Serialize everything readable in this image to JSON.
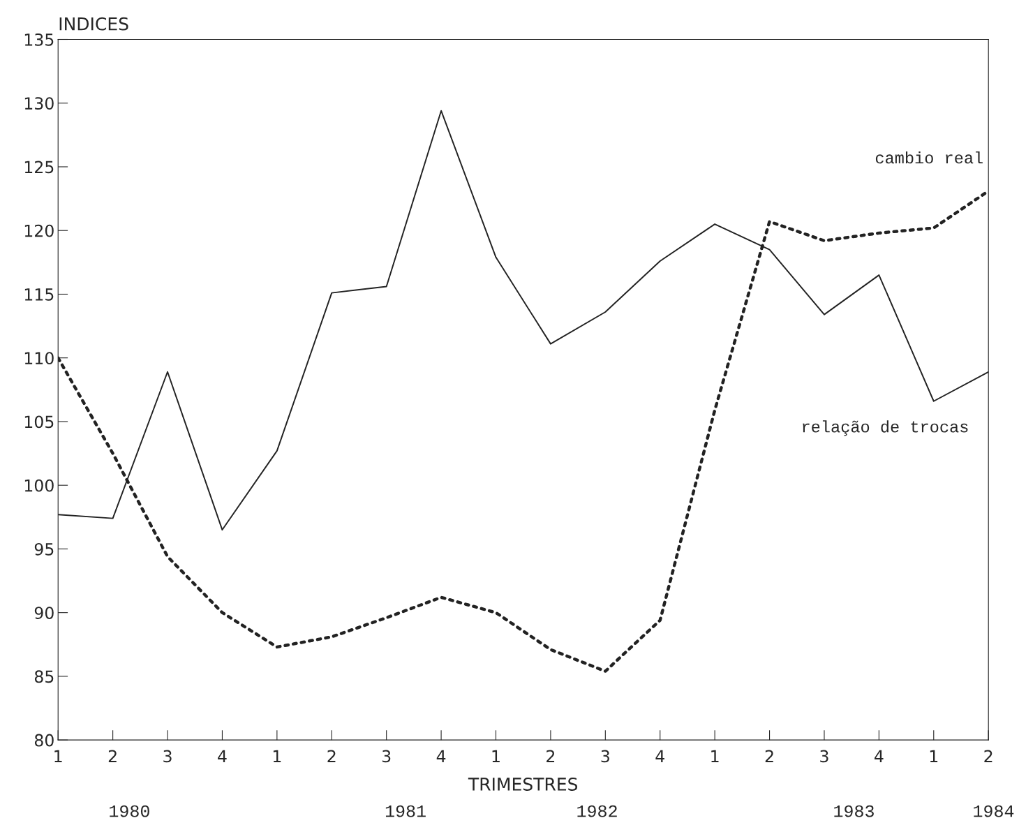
{
  "chart_data": {
    "type": "line",
    "ylabel": "INDICES",
    "xlabel": "TRIMESTRES",
    "categories": [
      "1",
      "2",
      "3",
      "4",
      "1",
      "2",
      "3",
      "4",
      "1",
      "2",
      "3",
      "4",
      "1",
      "2",
      "3",
      "4",
      "1",
      "2"
    ],
    "ylim": [
      80,
      135
    ],
    "yticks": [
      80,
      85,
      90,
      95,
      100,
      105,
      110,
      115,
      120,
      125,
      130,
      135
    ],
    "series": [
      {
        "name": "relação de trocas",
        "color": "#222222",
        "line_style": "solid",
        "values": [
          97.7,
          97.4,
          108.9,
          96.5,
          102.7,
          115.1,
          115.6,
          129.4,
          117.9,
          111.1,
          113.6,
          117.6,
          120.5,
          118.5,
          113.4,
          116.5,
          106.6,
          108.9
        ]
      },
      {
        "name": "cambio real",
        "color": "#222222",
        "line_style": "dotted",
        "values": [
          110.0,
          102.5,
          94.4,
          90.0,
          87.3,
          88.1,
          89.6,
          91.2,
          90.0,
          87.1,
          85.4,
          89.4,
          105.9,
          120.7,
          119.2,
          119.8,
          120.2,
          123.1
        ]
      }
    ],
    "annotations": [
      "1980",
      "1981",
      "1982",
      "1983",
      "1984"
    ],
    "grid": false,
    "legend": false,
    "marker": "none"
  }
}
